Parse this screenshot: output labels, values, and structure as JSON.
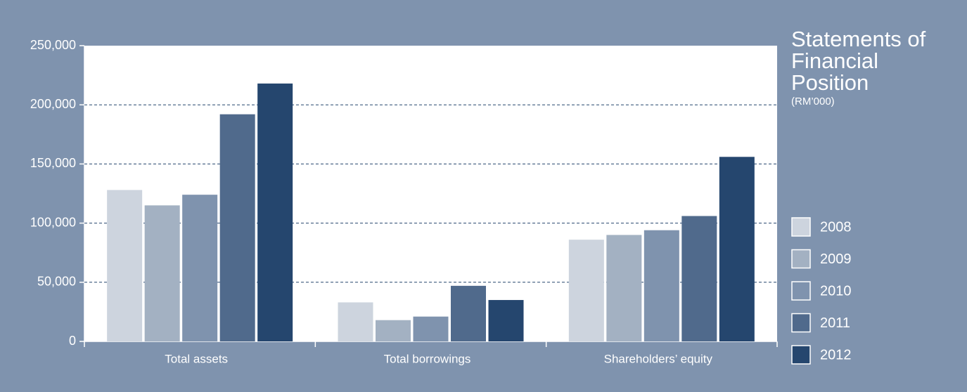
{
  "chart_data": {
    "type": "bar",
    "title": "Statements of Financial Position",
    "subtitle": "(RM’000)",
    "categories": [
      "Total assets",
      "Total borrowings",
      "Shareholders’ equity"
    ],
    "series": [
      {
        "name": "2008",
        "color": "#cdd4de",
        "values": [
          128000,
          33000,
          86000
        ]
      },
      {
        "name": "2009",
        "color": "#a3b1c2",
        "values": [
          115000,
          18000,
          90000
        ]
      },
      {
        "name": "2010",
        "color": "#7f93ae",
        "values": [
          124000,
          21000,
          94000
        ]
      },
      {
        "name": "2011",
        "color": "#506a8c",
        "values": [
          192000,
          47000,
          106000
        ]
      },
      {
        "name": "2012",
        "color": "#25466e",
        "values": [
          218000,
          35000,
          156000
        ]
      }
    ],
    "ylim": [
      0,
      250000
    ],
    "yticks": [
      0,
      {
        "value": 50000,
        "label": "50,000"
      },
      {
        "value": 100000,
        "label": "100,000"
      },
      {
        "value": 150000,
        "label": "150,000"
      },
      {
        "value": 200000,
        "label": "200,000"
      },
      {
        "value": 250000,
        "label": "250,000"
      }
    ],
    "grid": true
  }
}
